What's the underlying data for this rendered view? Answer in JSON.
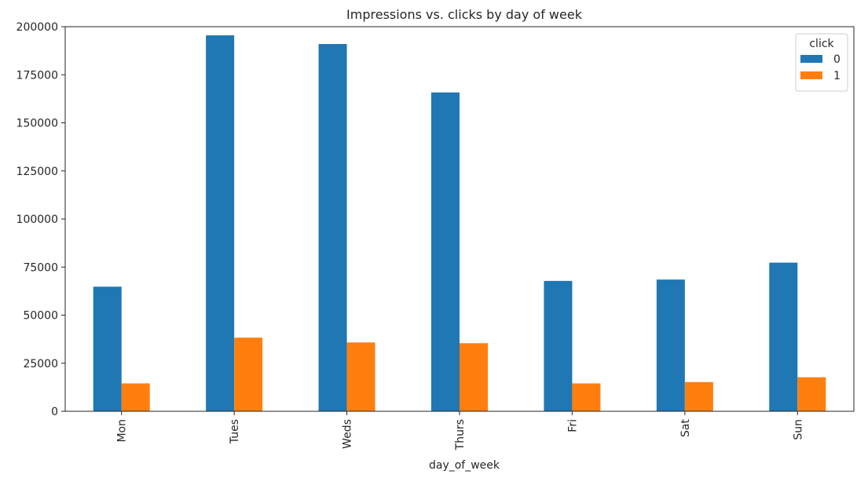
{
  "chart_data": {
    "type": "bar",
    "title": "Impressions vs. clicks by day of week",
    "xlabel": "day_of_week",
    "ylabel": "",
    "categories": [
      "Mon",
      "Tues",
      "Weds",
      "Thurs",
      "Fri",
      "Sat",
      "Sun"
    ],
    "series": [
      {
        "name": "0",
        "color": "#1f77b4",
        "values": [
          64800,
          195500,
          191000,
          165800,
          67800,
          68500,
          77300
        ]
      },
      {
        "name": "1",
        "color": "#ff7f0e",
        "values": [
          14500,
          38300,
          35800,
          35400,
          14500,
          15200,
          17700
        ]
      }
    ],
    "ylim": [
      0,
      200000
    ],
    "yticks": [
      0,
      25000,
      50000,
      75000,
      100000,
      125000,
      150000,
      175000,
      200000
    ],
    "ytick_labels": [
      "0",
      "25000",
      "50000",
      "75000",
      "100000",
      "125000",
      "150000",
      "175000",
      "200000"
    ],
    "legend": {
      "title": "click",
      "position": "top-right"
    },
    "grid": false,
    "x_tick_rotation": "vertical"
  }
}
